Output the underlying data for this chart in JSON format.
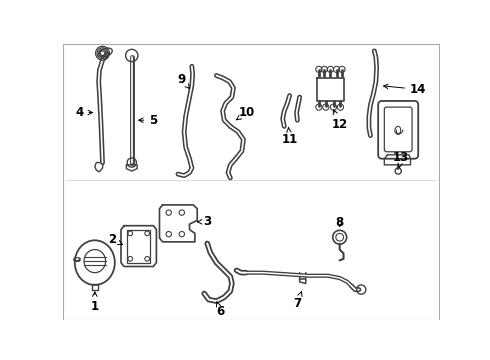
{
  "bg_color": "#ffffff",
  "border_color": "#aaaaaa",
  "lc": "#404040",
  "lc2": "#606060",
  "figsize": [
    4.9,
    3.6
  ],
  "dpi": 100
}
